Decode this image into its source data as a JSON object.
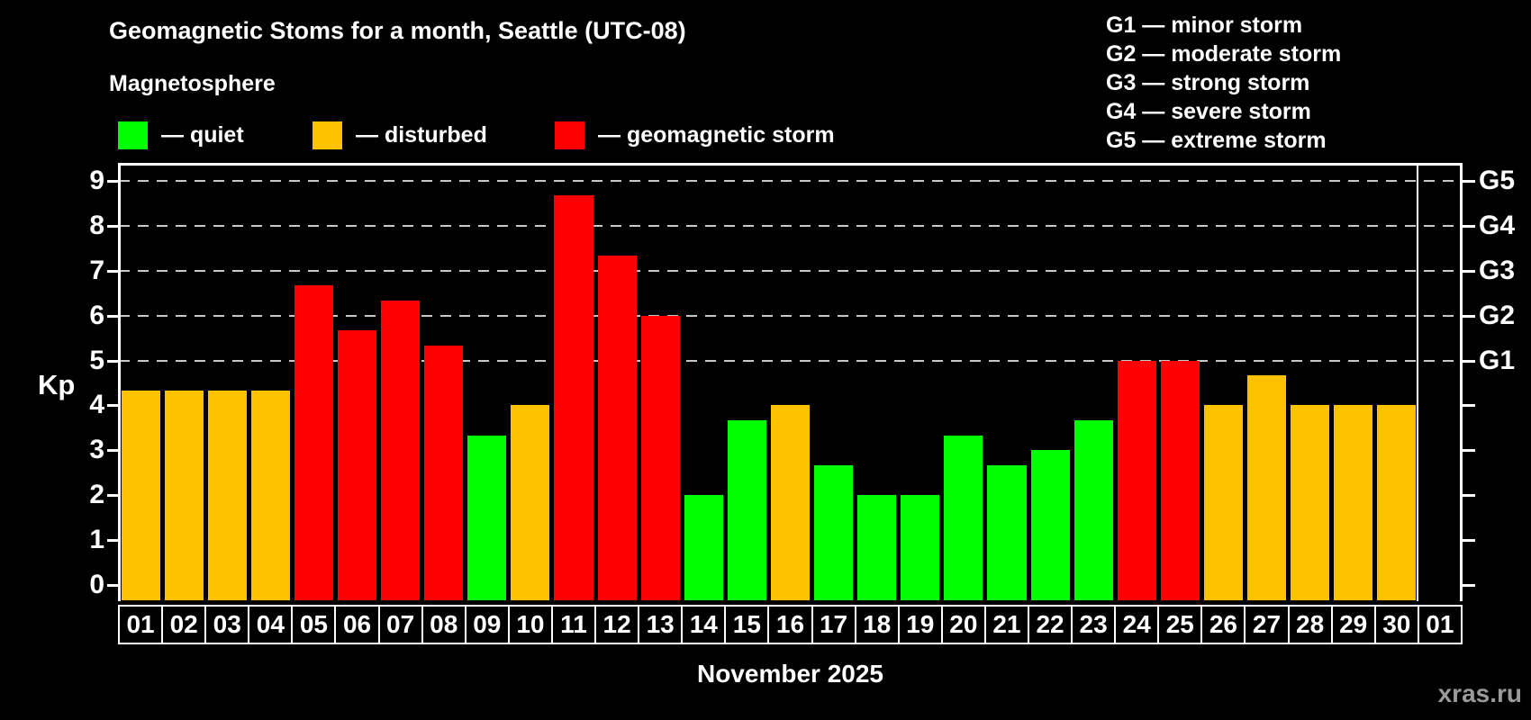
{
  "header": {
    "title": "Geomagnetic Stoms for a month, Seattle (UTC-08)",
    "subtitle": "Magnetosphere"
  },
  "legend": {
    "items": [
      {
        "name": "quiet",
        "label": "— quiet",
        "color": "#00ff00"
      },
      {
        "name": "disturbed",
        "label": "— disturbed",
        "color": "#ffc200"
      },
      {
        "name": "storm",
        "label": "— geomagnetic storm",
        "color": "#ff0000"
      }
    ]
  },
  "storm_scale_legend": [
    "G1 — minor storm",
    "G2 — moderate storm",
    "G3 — strong storm",
    "G4 — severe storm",
    "G5 — extreme storm"
  ],
  "chart_data": {
    "type": "bar",
    "title": "Geomagnetic Stoms for a month, Seattle (UTC-08)",
    "ylabel": "Kp",
    "xlabel": "November 2025",
    "ylim": [
      0,
      9
    ],
    "yticks": [
      0,
      1,
      2,
      3,
      4,
      5,
      6,
      7,
      8,
      9
    ],
    "gridlines_at": [
      5,
      6,
      7,
      8,
      9
    ],
    "grid": "dashed horizontal at storm levels",
    "legend_position": "top-left",
    "right_axis": [
      {
        "label": "G1",
        "kp": 5
      },
      {
        "label": "G2",
        "kp": 6
      },
      {
        "label": "G3",
        "kp": 7
      },
      {
        "label": "G4",
        "kp": 8
      },
      {
        "label": "G5",
        "kp": 9
      }
    ],
    "categories": [
      "01",
      "02",
      "03",
      "04",
      "05",
      "06",
      "07",
      "08",
      "09",
      "10",
      "11",
      "12",
      "13",
      "14",
      "15",
      "16",
      "17",
      "18",
      "19",
      "20",
      "21",
      "22",
      "23",
      "24",
      "25",
      "26",
      "27",
      "28",
      "29",
      "30",
      "01"
    ],
    "values": [
      4.33,
      4.33,
      4.33,
      4.33,
      6.67,
      5.67,
      6.33,
      5.33,
      3.33,
      4.0,
      8.67,
      7.33,
      6.0,
      2.0,
      3.67,
      4.0,
      2.67,
      2.0,
      2.0,
      3.33,
      2.67,
      3.0,
      3.67,
      5.0,
      5.0,
      4.0,
      4.67,
      4.0,
      4.0,
      4.0,
      null
    ],
    "statuses": [
      "disturbed",
      "disturbed",
      "disturbed",
      "disturbed",
      "storm",
      "storm",
      "storm",
      "storm",
      "quiet",
      "disturbed",
      "storm",
      "storm",
      "storm",
      "quiet",
      "quiet",
      "disturbed",
      "quiet",
      "quiet",
      "quiet",
      "quiet",
      "quiet",
      "quiet",
      "quiet",
      "storm",
      "storm",
      "disturbed",
      "disturbed",
      "disturbed",
      "disturbed",
      "disturbed",
      null
    ]
  },
  "watermark": "xras.ru"
}
